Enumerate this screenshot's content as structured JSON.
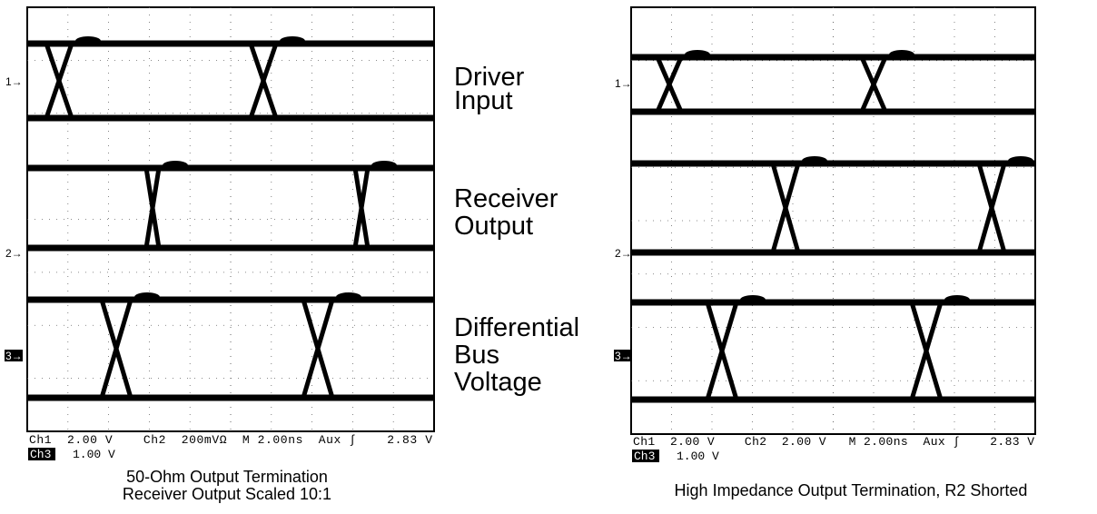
{
  "panels": [
    {
      "markers": [
        "1→",
        "2→",
        "3→"
      ],
      "readout": {
        "line1": "Ch1  2.00 V    Ch2  200mVΩ  M 2.00ns  Aux ∫    2.83 V",
        "ch3": "Ch3",
        "ch3_scale": "1.00 V"
      },
      "caption": [
        "50-Ohm Output Termination",
        "Receiver Output Scaled 10:1"
      ]
    },
    {
      "markers": [
        "1→",
        "2→",
        "3→"
      ],
      "readout": {
        "line1": "Ch1  2.00 V    Ch2  2.00 V   M 2.00ns  Aux ∫    2.83 V",
        "ch3": "Ch3",
        "ch3_scale": "1.00 V"
      },
      "caption": [
        "High Impedance Output Termination, R2 Shorted"
      ]
    }
  ],
  "labels": [
    [
      "Driver",
      "Input"
    ],
    [
      "Receiver",
      "Output"
    ],
    [
      "Differential",
      "Bus",
      "Voltage"
    ]
  ]
}
